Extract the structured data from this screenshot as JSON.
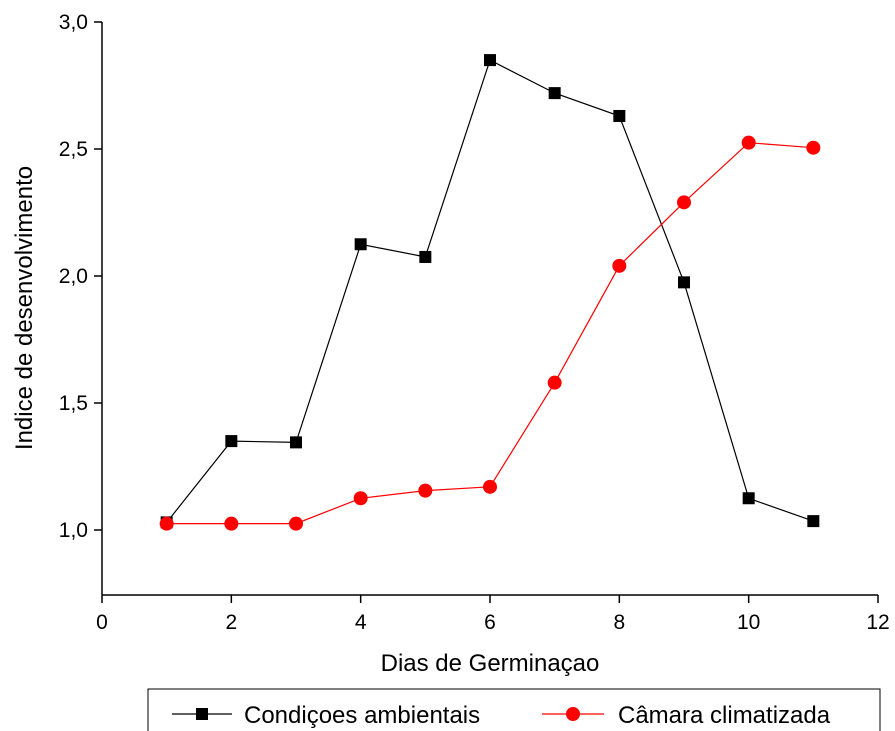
{
  "chart_data": {
    "type": "line",
    "title": "",
    "xlabel": "Dias de Germinaçao",
    "ylabel": "Indice de desenvolvimento",
    "xlim": [
      0,
      12
    ],
    "ylim": [
      0.75,
      3.0
    ],
    "x_ticks": [
      0,
      2,
      4,
      6,
      8,
      10,
      12
    ],
    "x_tick_labels": [
      "0",
      "2",
      "4",
      "6",
      "8",
      "10",
      "12"
    ],
    "y_ticks": [
      1.0,
      1.5,
      2.0,
      2.5,
      3.0
    ],
    "y_tick_labels": [
      "1,0",
      "1,5",
      "2,0",
      "2,5",
      "3,0"
    ],
    "grid": false,
    "legend_position": "bottom",
    "x": [
      1,
      2,
      3,
      4,
      5,
      6,
      7,
      8,
      9,
      10,
      11
    ],
    "series": [
      {
        "name": "Condiçoes ambientais",
        "color": "#000000",
        "marker": "square",
        "values": [
          1.03,
          1.35,
          1.345,
          2.125,
          2.075,
          2.85,
          2.72,
          2.63,
          1.975,
          1.125,
          1.035
        ]
      },
      {
        "name": "Câmara climatizada",
        "color": "#ff0000",
        "marker": "circle",
        "values": [
          1.025,
          1.025,
          1.025,
          1.125,
          1.155,
          1.17,
          1.58,
          2.04,
          2.29,
          2.525,
          2.505
        ]
      }
    ]
  }
}
